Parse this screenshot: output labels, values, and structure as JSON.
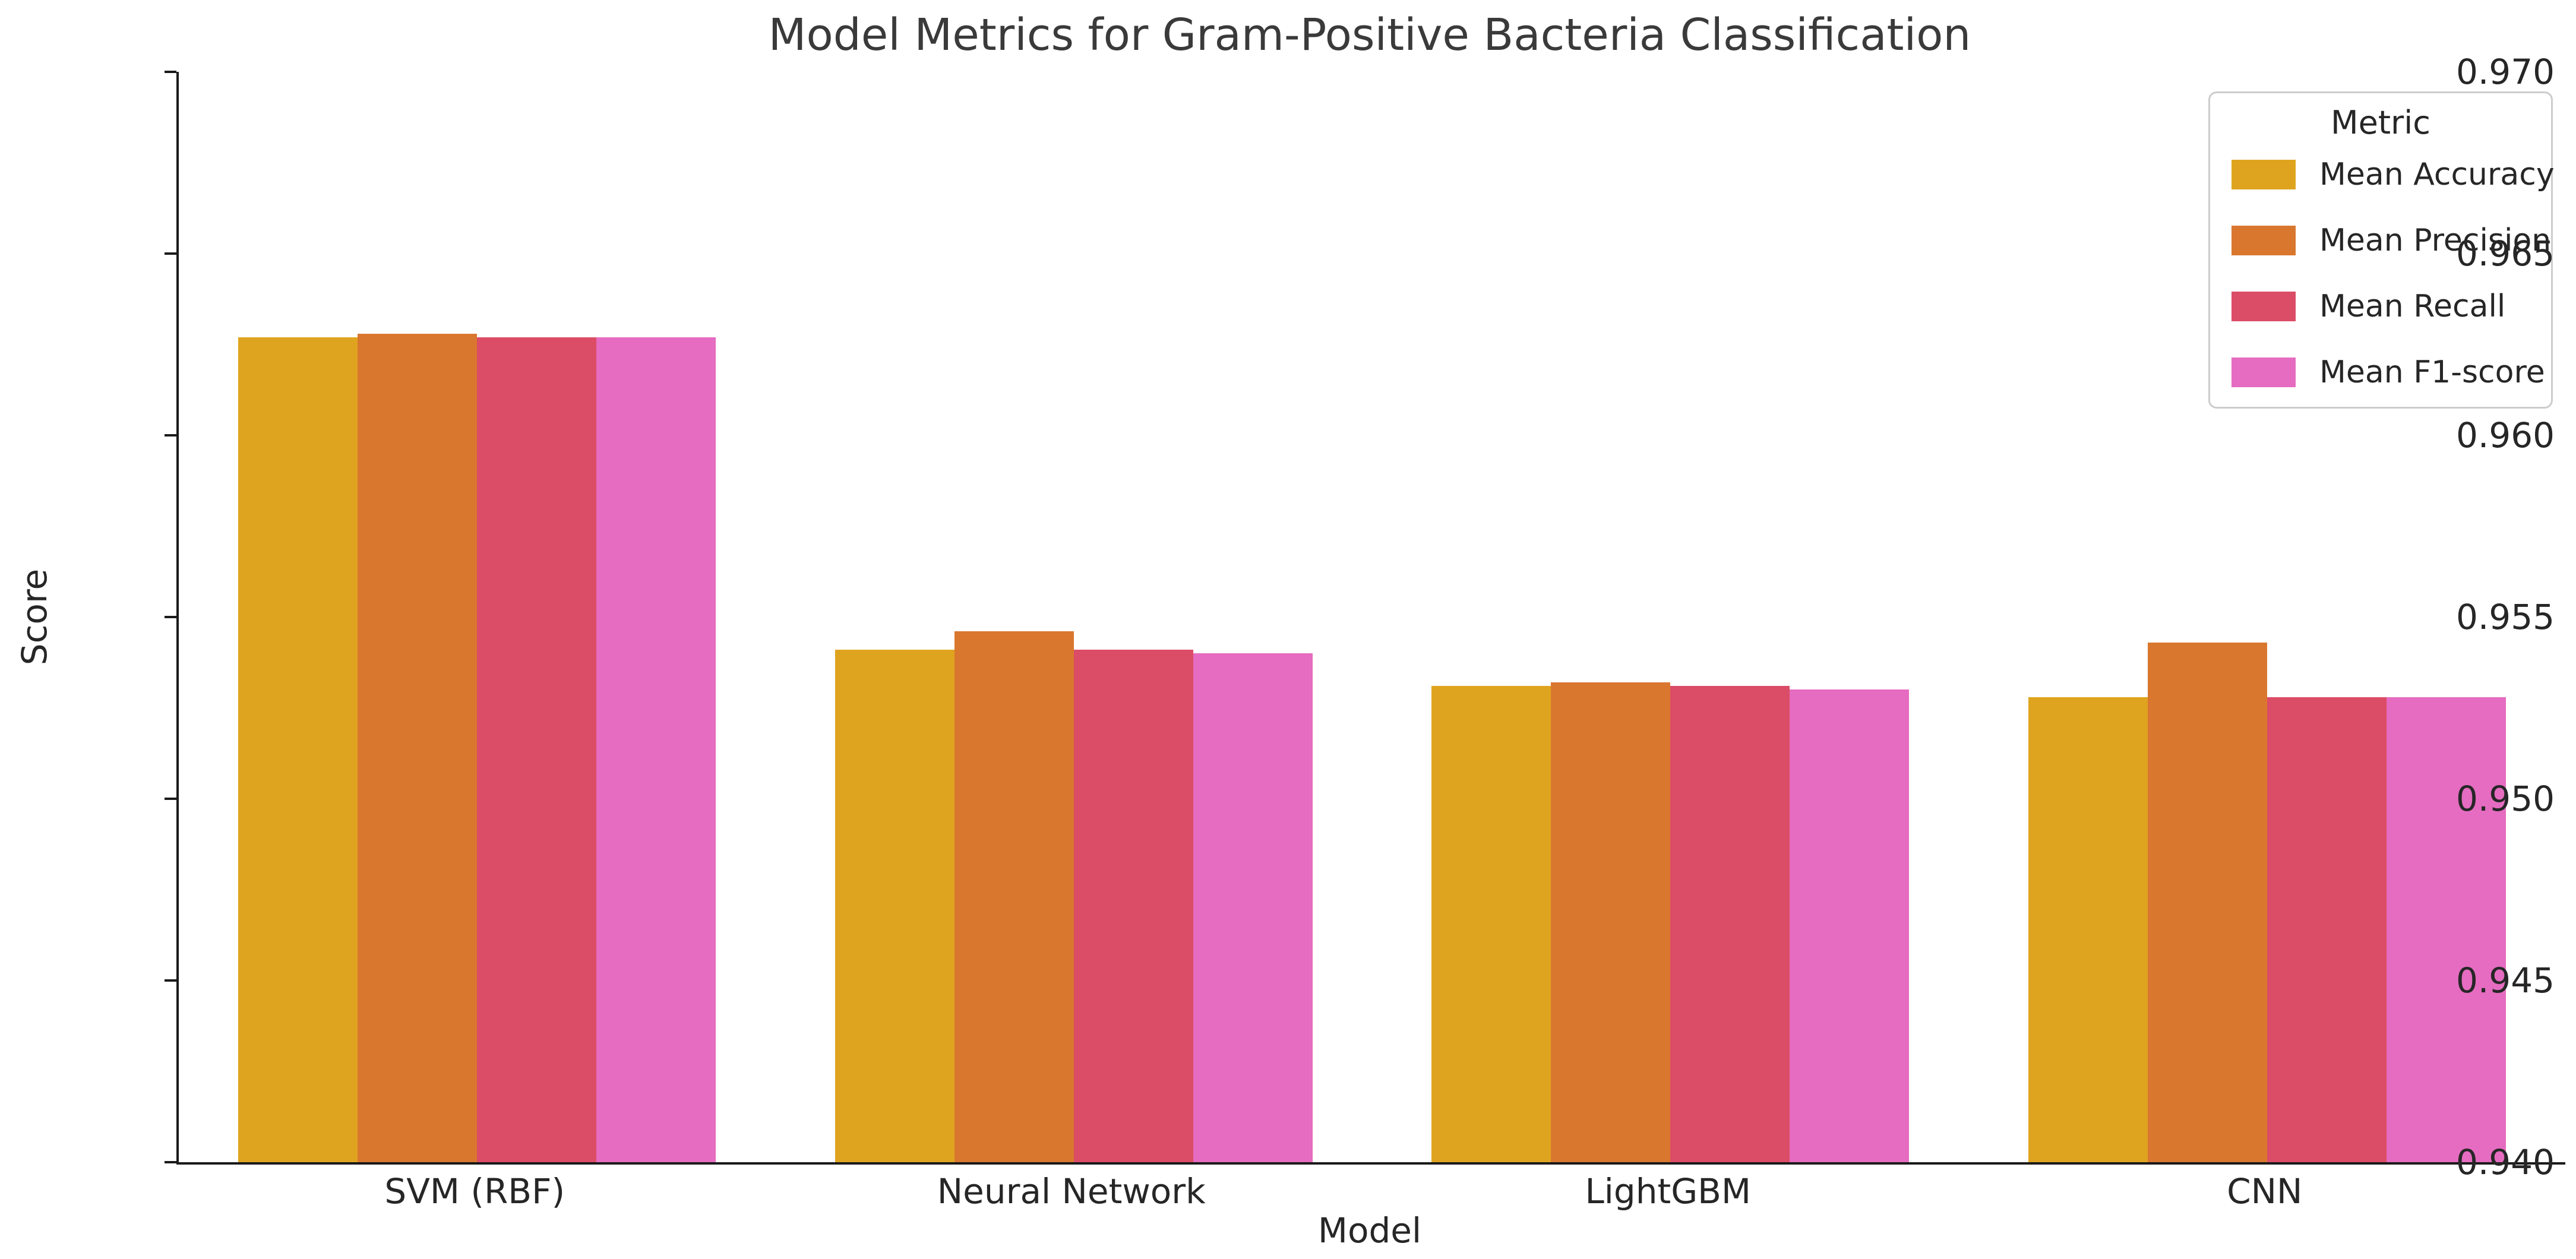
{
  "chart_data": {
    "type": "bar",
    "title": "Model Metrics for Gram-Positive Bacteria Classification",
    "xlabel": "Model",
    "ylabel": "Score",
    "categories": [
      "SVM (RBF)",
      "Neural Network",
      "LightGBM",
      "CNN"
    ],
    "series": [
      {
        "name": "Mean Accuracy",
        "color": "#DFA41F",
        "values": [
          0.9627,
          0.9541,
          0.9531,
          0.9528
        ]
      },
      {
        "name": "Mean Precision",
        "color": "#D9772F",
        "values": [
          0.9628,
          0.9546,
          0.9532,
          0.9543
        ]
      },
      {
        "name": "Mean Recall",
        "color": "#DB4C66",
        "values": [
          0.9627,
          0.9541,
          0.9531,
          0.9528
        ]
      },
      {
        "name": "Mean F1-score",
        "color": "#E56CC0",
        "values": [
          0.9627,
          0.954,
          0.953,
          0.9528
        ]
      }
    ],
    "ylim": [
      0.94,
      0.97
    ],
    "yticks": [
      "0.940",
      "0.945",
      "0.950",
      "0.955",
      "0.960",
      "0.965",
      "0.970"
    ],
    "legend": {
      "title": "Metric",
      "position": "upper right"
    },
    "grid": false,
    "group_width_fraction": 0.8,
    "colors": {
      "axis": "#1a1a1a",
      "tick_text": "#262626",
      "title_text": "#3a3a3a",
      "legend_border": "#cccccc",
      "background": "#ffffff"
    }
  }
}
